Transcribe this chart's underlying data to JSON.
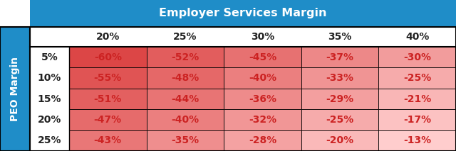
{
  "title": "Employer Services Margin",
  "title_bg_color": "#1f8dc8",
  "title_text_color": "#ffffff",
  "col_header_labels": [
    "20%",
    "25%",
    "30%",
    "35%",
    "40%"
  ],
  "row_header_labels": [
    "5%",
    "10%",
    "15%",
    "20%",
    "25%"
  ],
  "side_label": "PEO Margin",
  "side_label_bg_color": "#1f8dc8",
  "side_label_text_color": "#ffffff",
  "values": [
    [
      -60,
      -52,
      -45,
      -37,
      -30
    ],
    [
      -55,
      -48,
      -40,
      -33,
      -25
    ],
    [
      -51,
      -44,
      -36,
      -29,
      -21
    ],
    [
      -47,
      -40,
      -32,
      -25,
      -17
    ],
    [
      -43,
      -35,
      -28,
      -20,
      -13
    ]
  ],
  "cell_text_color": "#cc2222",
  "grid_line_color": "#000000",
  "header_text_color": "#222222",
  "background_color": "#ffffff",
  "vmin": -60,
  "vmax": -13,
  "color_deep": [
    220,
    70,
    70
  ],
  "color_light": [
    255,
    205,
    205
  ]
}
